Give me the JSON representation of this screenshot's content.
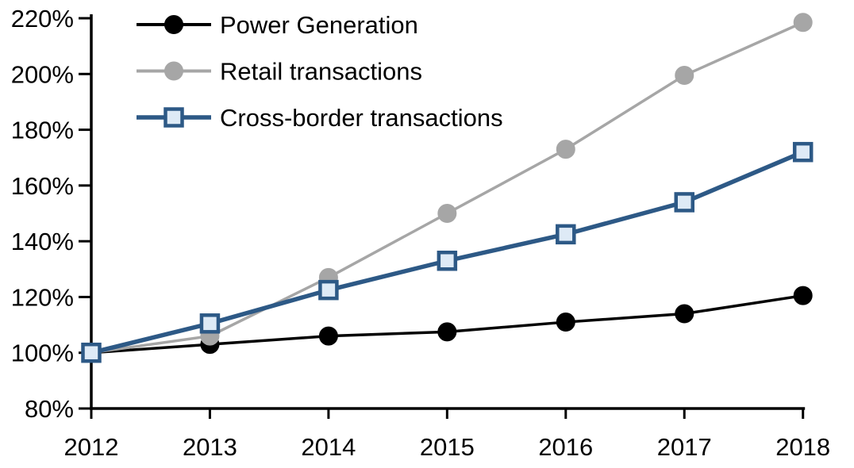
{
  "chart_data": {
    "type": "line",
    "title": "",
    "background": "#FFFFFF",
    "grid": false,
    "x_categories": [
      "2012",
      "2013",
      "2014",
      "2015",
      "2016",
      "2017",
      "2018"
    ],
    "y_axis": {
      "min": 80,
      "max": 220,
      "step": 20,
      "suffix": "%",
      "tick_labels": [
        "80%",
        "100%",
        "120%",
        "140%",
        "160%",
        "180%",
        "200%",
        "220%"
      ]
    },
    "legend": {
      "position": "top-left-inside",
      "entries": [
        "Power Generation",
        "Retail transactions",
        "Cross-border transactions"
      ]
    },
    "series": [
      {
        "name": "Power Generation",
        "line_color": "#000000",
        "line_width": 3.5,
        "marker": "circle",
        "marker_fill": "#000000",
        "marker_stroke": "#000000",
        "values": [
          100,
          103,
          106,
          107.5,
          111,
          114,
          120.5
        ]
      },
      {
        "name": "Retail transactions",
        "line_color": "#A6A6A6",
        "line_width": 3.5,
        "marker": "circle",
        "marker_fill": "#A6A6A6",
        "marker_stroke": "#A6A6A6",
        "values": [
          100,
          106,
          127,
          150,
          173,
          199.5,
          218.5
        ]
      },
      {
        "name": "Cross-border transactions",
        "line_color": "#2D5986",
        "line_width": 5.5,
        "marker": "square",
        "marker_fill": "#DEEAF6",
        "marker_stroke": "#2D5986",
        "values": [
          100,
          110.5,
          122.5,
          133,
          142.5,
          154,
          172
        ]
      }
    ],
    "axis_color": "#000000"
  }
}
